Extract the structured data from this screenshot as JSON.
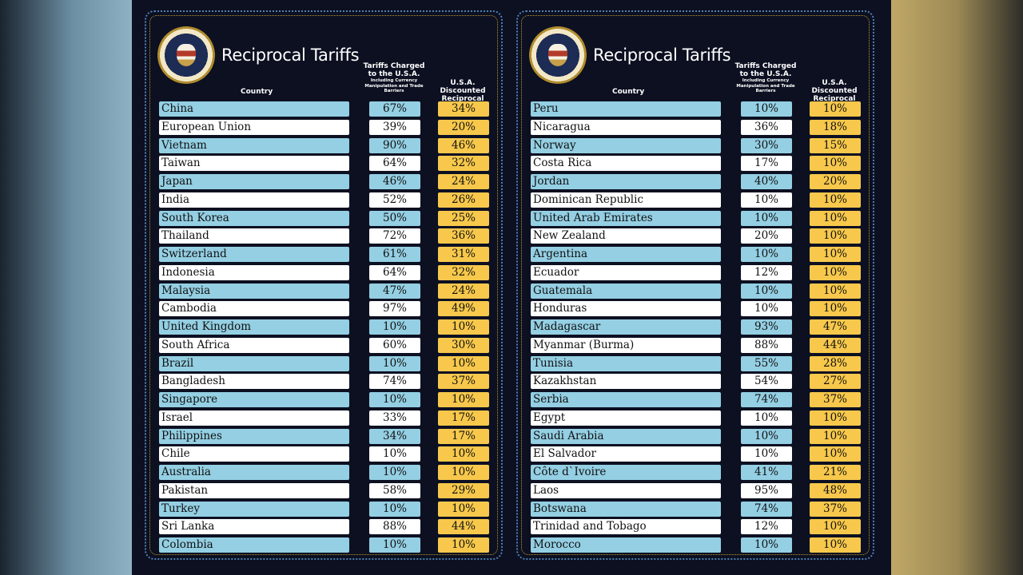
{
  "colors": {
    "blue_row": "#94cfe3",
    "white_row": "#ffffff",
    "discount": "#f7c84b",
    "background": "#0c1021"
  },
  "icons": {
    "seal": "presidential-seal-icon"
  },
  "chart_data": [
    {
      "type": "table",
      "title": "Reciprocal Tariffs",
      "seal_text": "SEAL OF THE PRESIDENT OF THE UNITED STATES",
      "headers": {
        "country": "Country",
        "charged": "Tariffs Charged to the U.S.A.",
        "charged_sub": "Including Currency Manipulation and Trade Barriers",
        "discounted": "U.S.A. Discounted Reciprocal Tariffs"
      },
      "rows": [
        {
          "country": "China",
          "charged": "67%",
          "discounted": "34%"
        },
        {
          "country": "European Union",
          "charged": "39%",
          "discounted": "20%"
        },
        {
          "country": "Vietnam",
          "charged": "90%",
          "discounted": "46%"
        },
        {
          "country": "Taiwan",
          "charged": "64%",
          "discounted": "32%"
        },
        {
          "country": "Japan",
          "charged": "46%",
          "discounted": "24%"
        },
        {
          "country": "India",
          "charged": "52%",
          "discounted": "26%"
        },
        {
          "country": "South Korea",
          "charged": "50%",
          "discounted": "25%"
        },
        {
          "country": "Thailand",
          "charged": "72%",
          "discounted": "36%"
        },
        {
          "country": "Switzerland",
          "charged": "61%",
          "discounted": "31%"
        },
        {
          "country": "Indonesia",
          "charged": "64%",
          "discounted": "32%"
        },
        {
          "country": "Malaysia",
          "charged": "47%",
          "discounted": "24%"
        },
        {
          "country": "Cambodia",
          "charged": "97%",
          "discounted": "49%"
        },
        {
          "country": "United Kingdom",
          "charged": "10%",
          "discounted": "10%"
        },
        {
          "country": "South Africa",
          "charged": "60%",
          "discounted": "30%"
        },
        {
          "country": "Brazil",
          "charged": "10%",
          "discounted": "10%"
        },
        {
          "country": "Bangladesh",
          "charged": "74%",
          "discounted": "37%"
        },
        {
          "country": "Singapore",
          "charged": "10%",
          "discounted": "10%"
        },
        {
          "country": "Israel",
          "charged": "33%",
          "discounted": "17%"
        },
        {
          "country": "Philippines",
          "charged": "34%",
          "discounted": "17%"
        },
        {
          "country": "Chile",
          "charged": "10%",
          "discounted": "10%"
        },
        {
          "country": "Australia",
          "charged": "10%",
          "discounted": "10%"
        },
        {
          "country": "Pakistan",
          "charged": "58%",
          "discounted": "29%"
        },
        {
          "country": "Turkey",
          "charged": "10%",
          "discounted": "10%"
        },
        {
          "country": "Sri Lanka",
          "charged": "88%",
          "discounted": "44%"
        },
        {
          "country": "Colombia",
          "charged": "10%",
          "discounted": "10%"
        }
      ]
    },
    {
      "type": "table",
      "title": "Reciprocal Tariffs",
      "seal_text": "SEAL OF THE PRESIDENT OF THE UNITED STATES",
      "headers": {
        "country": "Country",
        "charged": "Tariffs Charged to the U.S.A.",
        "charged_sub": "Including Currency Manipulation and Trade Barriers",
        "discounted": "U.S.A. Discounted Reciprocal Tariffs"
      },
      "rows": [
        {
          "country": "Peru",
          "charged": "10%",
          "discounted": "10%"
        },
        {
          "country": "Nicaragua",
          "charged": "36%",
          "discounted": "18%"
        },
        {
          "country": "Norway",
          "charged": "30%",
          "discounted": "15%"
        },
        {
          "country": "Costa Rica",
          "charged": "17%",
          "discounted": "10%"
        },
        {
          "country": "Jordan",
          "charged": "40%",
          "discounted": "20%"
        },
        {
          "country": "Dominican Republic",
          "charged": "10%",
          "discounted": "10%"
        },
        {
          "country": "United Arab Emirates",
          "charged": "10%",
          "discounted": "10%"
        },
        {
          "country": "New Zealand",
          "charged": "20%",
          "discounted": "10%"
        },
        {
          "country": "Argentina",
          "charged": "10%",
          "discounted": "10%"
        },
        {
          "country": "Ecuador",
          "charged": "12%",
          "discounted": "10%"
        },
        {
          "country": "Guatemala",
          "charged": "10%",
          "discounted": "10%"
        },
        {
          "country": "Honduras",
          "charged": "10%",
          "discounted": "10%"
        },
        {
          "country": "Madagascar",
          "charged": "93%",
          "discounted": "47%"
        },
        {
          "country": "Myanmar (Burma)",
          "charged": "88%",
          "discounted": "44%"
        },
        {
          "country": "Tunisia",
          "charged": "55%",
          "discounted": "28%"
        },
        {
          "country": "Kazakhstan",
          "charged": "54%",
          "discounted": "27%"
        },
        {
          "country": "Serbia",
          "charged": "74%",
          "discounted": "37%"
        },
        {
          "country": "Egypt",
          "charged": "10%",
          "discounted": "10%"
        },
        {
          "country": "Saudi Arabia",
          "charged": "10%",
          "discounted": "10%"
        },
        {
          "country": "El Salvador",
          "charged": "10%",
          "discounted": "10%"
        },
        {
          "country": "Côte d`Ivoire",
          "charged": "41%",
          "discounted": "21%"
        },
        {
          "country": "Laos",
          "charged": "95%",
          "discounted": "48%"
        },
        {
          "country": "Botswana",
          "charged": "74%",
          "discounted": "37%"
        },
        {
          "country": "Trinidad and Tobago",
          "charged": "12%",
          "discounted": "10%"
        },
        {
          "country": "Morocco",
          "charged": "10%",
          "discounted": "10%"
        }
      ]
    }
  ]
}
